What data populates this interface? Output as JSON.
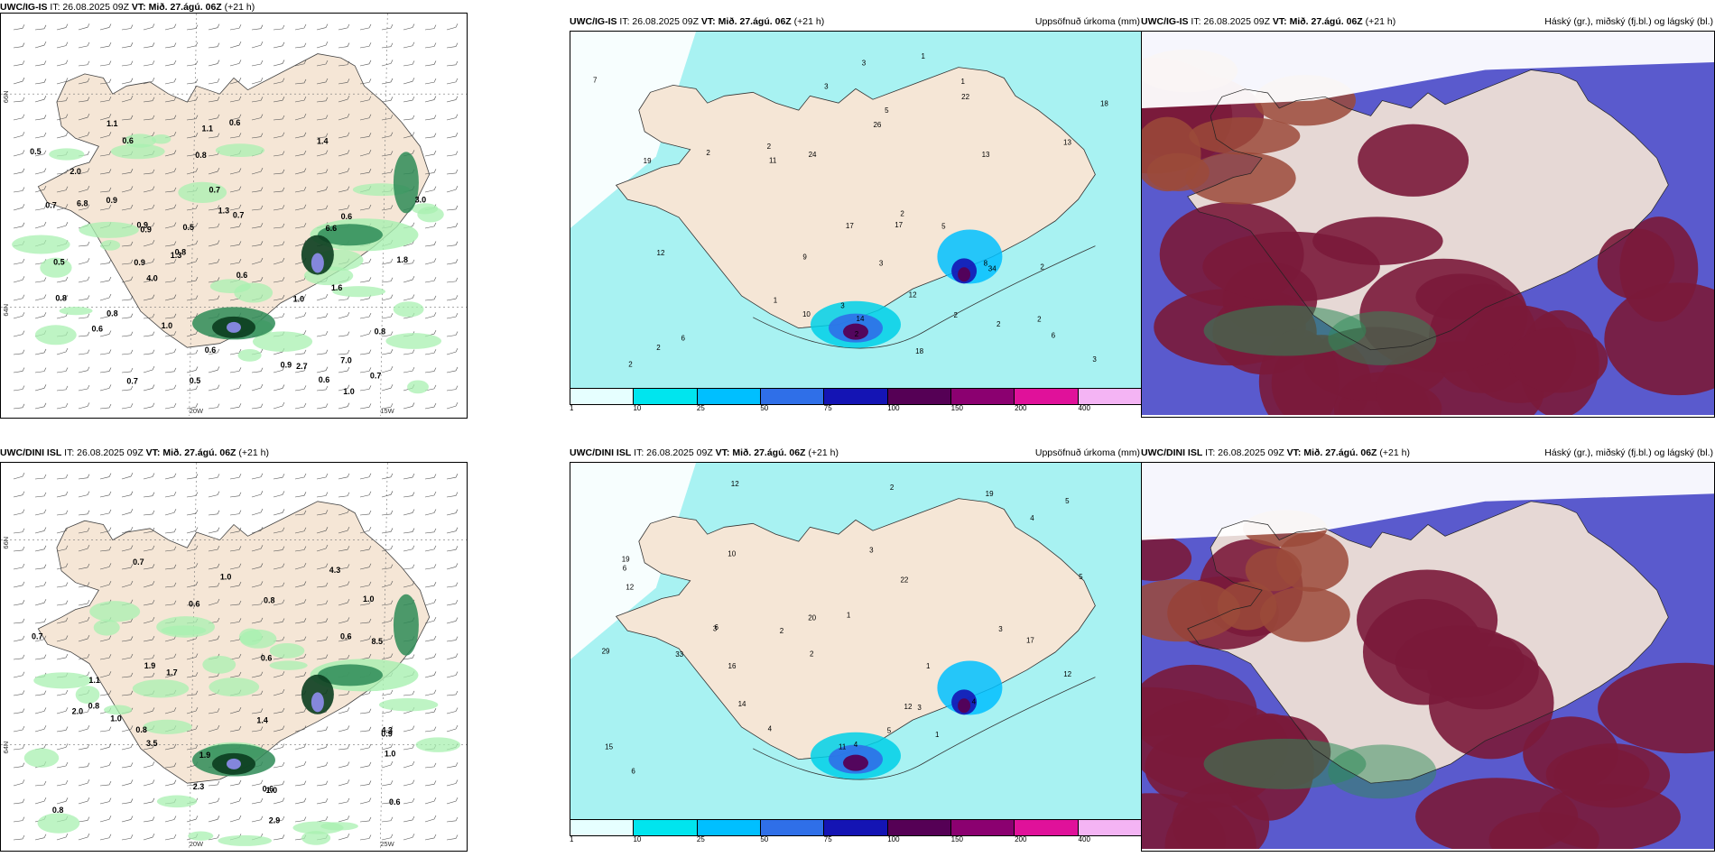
{
  "rows": [
    {
      "panels": [
        {
          "model": "UWC/IG-IS",
          "it_label": "IT: 26.08.2025 09Z",
          "vt_label": "VT: Mið. 27.ágú. 06Z",
          "lead": "(+21 h)",
          "right_title": "",
          "kind": "precip-rate",
          "axis_labels": {
            "lat_top": "66N",
            "lat_mid": "64N",
            "lon_a": "20W",
            "lon_b": "15W"
          },
          "values": [
            "0.6",
            "0.9",
            "0.6",
            "0.5",
            "0.6",
            "1.1",
            "0.5",
            "0.5",
            "0.8",
            "0.7",
            "0.8",
            "0.7",
            "1.4",
            "1.0",
            "0.6",
            "0.8",
            "0.7",
            "1.3",
            "7.0",
            "6.8",
            "2.0",
            "4.0",
            "0.5",
            "0.6",
            "0.7",
            "1.1",
            "2.7",
            "3.0",
            "6.6",
            "0.9",
            "1.0",
            "0.9",
            "0.8",
            "0.7",
            "1.0",
            "0.6",
            "0.8",
            "0.9",
            "1.3",
            "0.9",
            "0.6",
            "1.8",
            "1.6"
          ]
        },
        {
          "model": "UWC/IG-IS",
          "it_label": "IT: 26.08.2025 09Z",
          "vt_label": "VT: Mið. 27.ágú. 06Z",
          "lead": "(+21 h)",
          "right_title": "Uppsöfnuð úrkoma (mm)",
          "kind": "accum",
          "values": [
            "2",
            "2",
            "2",
            "3",
            "3",
            "1",
            "2",
            "1",
            "2",
            "1",
            "3",
            "11",
            "10",
            "3",
            "2",
            "2",
            "8",
            "12",
            "17",
            "18",
            "7",
            "6",
            "2",
            "5",
            "34",
            "22",
            "24",
            "26",
            "13",
            "12",
            "6",
            "9",
            "5",
            "2",
            "17",
            "18",
            "14",
            "13",
            "19",
            "3",
            "2"
          ]
        },
        {
          "model": "UWC/IG-IS",
          "it_label": "IT: 26.08.2025 09Z",
          "vt_label": "VT: Mið. 27.ágú. 06Z",
          "lead": "(+21 h)",
          "right_title": "Háský (gr.), miðský (fj.bl.) og lágský (bl.)",
          "kind": "cloud"
        }
      ]
    },
    {
      "panels": [
        {
          "model": "UWC/DINI ISL",
          "it_label": "IT: 26.08.2025 09Z",
          "vt_label": "VT: Mið. 27.ágú. 06Z",
          "lead": "(+21 h)",
          "right_title": "",
          "kind": "precip-rate",
          "axis_labels": {
            "lat_top": "66N",
            "lat_mid": "64N",
            "lon_a": "20W",
            "lon_b": "25W"
          },
          "values": [
            "1.0",
            "0.8",
            "0.6",
            "2.0",
            "1.1",
            "1.0",
            "0.8",
            "0.6",
            "0.8",
            "0.6",
            "1.0",
            "4.3",
            "2.9",
            "2.3",
            "1.7",
            "8.5",
            "1.0",
            "0.7",
            "4.3",
            "1.9",
            "1.0",
            "0.7",
            "0.8",
            "0.6",
            "1.4",
            "3.5",
            "1.9",
            "0.6",
            "0.9"
          ]
        },
        {
          "model": "UWC/DINI ISL",
          "it_label": "IT: 26.08.2025 09Z",
          "vt_label": "VT: Mið. 27.ágú. 06Z",
          "lead": "(+21 h)",
          "right_title": "Uppsöfnuð úrkoma (mm)",
          "kind": "accum",
          "values": [
            "2",
            "1",
            "1",
            "12",
            "2",
            "1",
            "4",
            "5",
            "4",
            "3",
            "2",
            "6",
            "14",
            "10",
            "3",
            "4",
            "3",
            "5",
            "22",
            "16",
            "19",
            "12",
            "6",
            "4",
            "12",
            "5",
            "15",
            "11",
            "29",
            "33",
            "20",
            "17",
            "19",
            "3",
            "12",
            "6"
          ]
        },
        {
          "model": "UWC/DINI ISL",
          "it_label": "IT: 26.08.2025 09Z",
          "vt_label": "VT: Mið. 27.ágú. 06Z",
          "lead": "(+21 h)",
          "right_title": "Háský (gr.), miðský (fj.bl.) og lágský (bl.)",
          "kind": "cloud"
        }
      ]
    }
  ],
  "legend": {
    "ticks": [
      "1",
      "10",
      "25",
      "50",
      "75",
      "100",
      "150",
      "200",
      "400"
    ],
    "colors": [
      "#e6ffff",
      "#00e5ee",
      "#00bfff",
      "#2f6fe8",
      "#1414b4",
      "#550055",
      "#8b0070",
      "#e0119a",
      "#f4b4f4"
    ]
  },
  "colors": {
    "land": "#f5e6d6",
    "sea": "#ffffff",
    "rain_light": "#a8f0b0",
    "rain_mid": "#2e8b57",
    "rain_heavy": "#0b3d1f",
    "rain_peak": "#8a8ae6",
    "accum_base": "#a8f2f2",
    "cloud_high": "#2e8b57",
    "cloud_mid": "#5a5acd",
    "cloud_low": "#7a1a3a",
    "cloud_brown": "#9b4a3a"
  }
}
